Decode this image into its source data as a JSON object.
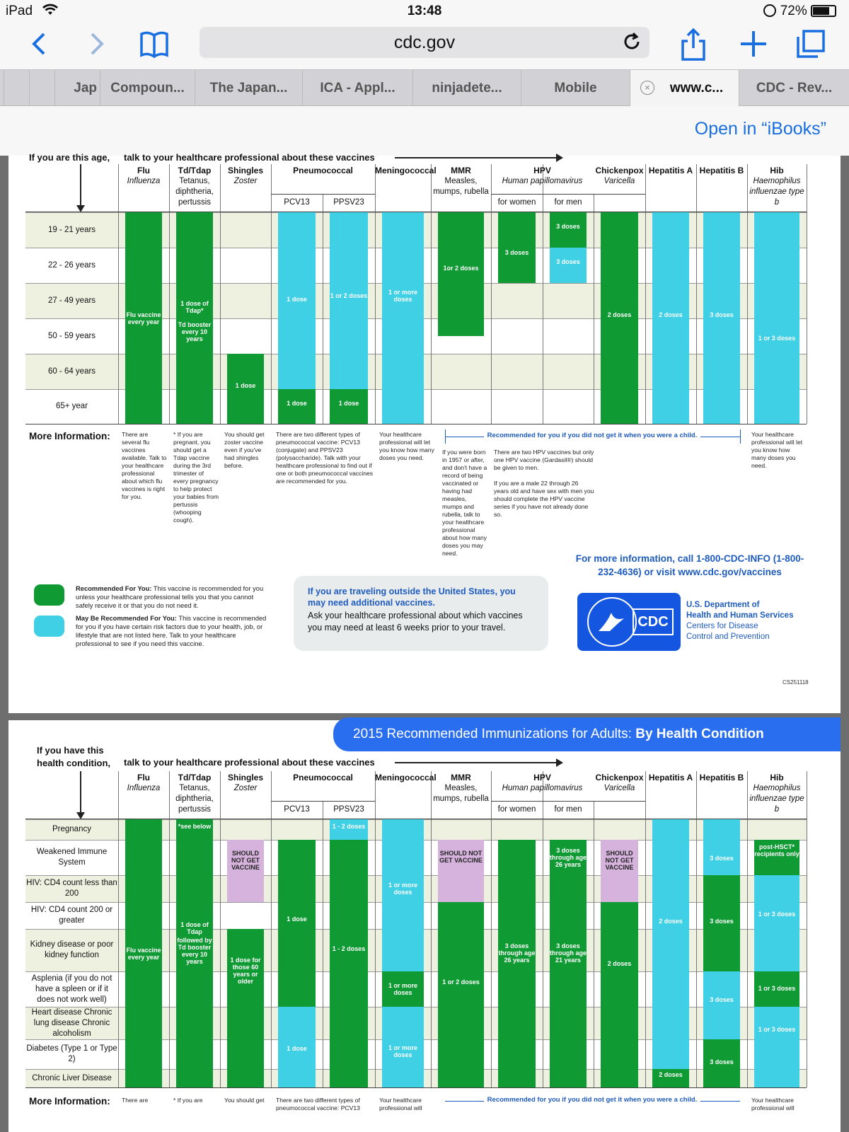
{
  "status": {
    "device": "iPad",
    "time": "13:48",
    "battery": "72%"
  },
  "browser": {
    "url": "cdc.gov",
    "tabs": [
      "Jap",
      "Compoun...",
      "The Japan...",
      "ICA - Appl...",
      "ninjadete...",
      "Mobile",
      "www.c...",
      "CDC - Rev..."
    ],
    "open_in": "Open in “iBooks”"
  },
  "colors": {
    "recommended": "#0f9a33",
    "maybe": "#3fd0e6",
    "not": "#d6b3dd",
    "row_band": "#eef0e0",
    "link_blue": "#1a6fe0"
  },
  "columns": [
    {
      "name": "Flu",
      "sub": "Influenza"
    },
    {
      "name": "Td/Tdap",
      "sub": "Tetanus, diphtheria, pertussis"
    },
    {
      "name": "Shingles",
      "sub": "Zoster"
    },
    {
      "name": "Pneumococcal",
      "sub": ""
    },
    {
      "name": "Meningococcal",
      "sub": ""
    },
    {
      "name": "MMR",
      "sub": "Measles, mumps, rubella"
    },
    {
      "name": "HPV",
      "sub": "Human papillomavirus"
    },
    {
      "name": "Chickenpox",
      "sub": "Varicella"
    },
    {
      "name": "Hepatitis A",
      "sub": ""
    },
    {
      "name": "Hepatitis B",
      "sub": ""
    },
    {
      "name": "Hib",
      "sub": "Haemophilus influenzae type b"
    }
  ],
  "subcols": {
    "pcv13": "PCV13",
    "ppsv23": "PPSV23",
    "hpv_women": "for women",
    "hpv_men": "for men"
  },
  "age_table": {
    "head_left": "If you are this age,",
    "head_right": "talk to your healthcare professional about these vaccines",
    "rows": [
      "19 - 21 years",
      "22 - 26 years",
      "27 - 49 years",
      "50 - 59 years",
      "60 - 64 years",
      "65+ year"
    ],
    "labels": {
      "flu": "Flu vaccine every year",
      "tdap": "1 dose of Tdap*",
      "td": "Td booster every 10 years",
      "shingles": "1 dose",
      "pcv13_a": "1 dose",
      "pcv13_b": "1 dose",
      "ppsv_a": "1 or 2 doses",
      "ppsv_b": "1 dose",
      "mening": "1 or more doses",
      "mmr": "1or 2 doses",
      "hpvw": "3 doses",
      "hpvm_a": "3 doses",
      "hpvm_b": "3 doses",
      "chick": "2 doses",
      "hepa": "2 doses",
      "hepb": "3 doses",
      "hib": "1 or 3 doses"
    },
    "more_info_label": "More Information:",
    "info": {
      "flu": "There are several flu vaccines available. Talk to your healthcare professional about which flu vaccines is right for you.",
      "tdap": "* If you are pregnant, you should get a Tdap vaccine during the 3rd trimester of every pregnancy to help protect your babies from pertussis (whooping cough).",
      "shingles": "You should get zoster vaccine even if you've had shingles before.",
      "pneumo": "There are two different types of pneumococcal vaccine: PCV13 (conjugate) and PPSV23 (polysaccharide). Talk with your healthcare professional to find out if one or both pneumococcal vaccines are recommended for you.",
      "mening": "Your healthcare professional will let you know how many doses you need.",
      "child_note": "Recommended for you if you did not get it when you were a child.",
      "mmr": "If you were born in 1957 or after, and don't have a record of being vaccinated or having had measles, mumps and rubella, talk to your healthcare professional about how many doses you may need.",
      "hpv": "There are two HPV vaccines but only one HPV vaccine (Gardasil®) should be given to men.",
      "hpv2": "If you are a male 22 through 26 years old and have sex with men you should complete the HPV vaccine series if you have not already done so.",
      "hib": "Your healthcare professional will let you know how many doses you need."
    },
    "contact": "For more information, call 1-800-CDC-INFO (1-800-232-4636) or visit www.cdc.gov/vaccines",
    "legend": {
      "rec_title": "Recommended For You:",
      "rec_text": "This vaccine is recommended for you unless your healthcare professional tells you that you cannot safely receive it or that you do not need it.",
      "may_title": "May Be Recommended For You:",
      "may_text": "This vaccine is recommended for you if you have certain risk factors due to your health, job, or lifestyle that are not listed here. Talk to your healthcare professional to see if you need this vaccine."
    },
    "travel_title": "If you are traveling outside the United States, you may need additional vaccines.",
    "travel_text": "Ask your healthcare professional about which vaccines you may need at least 6 weeks prior to your travel.",
    "hhs": [
      "U.S. Department of",
      "Health and Human Services",
      "Centers for Disease",
      "Control and Prevention"
    ],
    "cdc_logo": "CDC",
    "code": "CS251118"
  },
  "cond_table": {
    "banner_a": "2015 Recommended Immunizations for Adults:",
    "banner_b": "By Health Condition",
    "head_left": "If you have this health condition,",
    "head_right": "talk to your healthcare professional about these vaccines",
    "rows": [
      "Pregnancy",
      "Weakened Immune System",
      "HIV: CD4 count less than 200",
      "HIV: CD4 count 200 or greater",
      "Kidney disease or poor kidney function",
      "Asplenia (if you do not have a spleen or if it does not work well)",
      "Heart disease Chronic lung disease Chronic alcoholism",
      "Diabetes (Type 1 or Type 2)",
      "Chronic Liver Disease"
    ],
    "labels": {
      "flu": "Flu vaccine every year",
      "see": "*see below",
      "tdap": "1 dose of Tdap",
      "td": "followed by Td booster every 10 years",
      "should": "SHOULD NOT GET VACCINE",
      "shing": "1 dose for those 60 years or older",
      "pcv_a": "1 dose",
      "pcv_b": "1 dose",
      "ppsv_a": "1 - 2 doses",
      "ppsv_b": "1 - 2 doses",
      "men_a": "1 or more doses",
      "men_b": "1 or more doses",
      "men_c": "1 or more doses",
      "mmr": "1 or 2 doses",
      "hpvw": "3 doses through age 26 years",
      "hpvm_a": "3 doses through age 26 years",
      "hpvm_b": "3 doses through age 21 years",
      "chick": "2 doses",
      "hepa_a": "2 doses",
      "hepa_b": "2 doses",
      "hepb_a": "3 doses",
      "hepb_b": "3 doses",
      "hepb_c": "3 doses",
      "hepb_d": "3 doses",
      "hib_a": "post-HSCT* recipients only",
      "hib_b": "1 or 3 doses",
      "hib_c": "1 or 3 doses",
      "hib_d": "1 or 3 doses"
    },
    "more_info_label": "More Information:",
    "info": {
      "flu": "There are several flu",
      "tdap": "* If you are pregnant, you",
      "shingles": "You should get zoster",
      "pneumo": "There are two different types of pneumococcal vaccine: PCV13",
      "mening": "Your healthcare professional will",
      "hib": "Your healthcare professional will"
    },
    "child_note": "Recommended for you if you did not get it when you were a child."
  }
}
